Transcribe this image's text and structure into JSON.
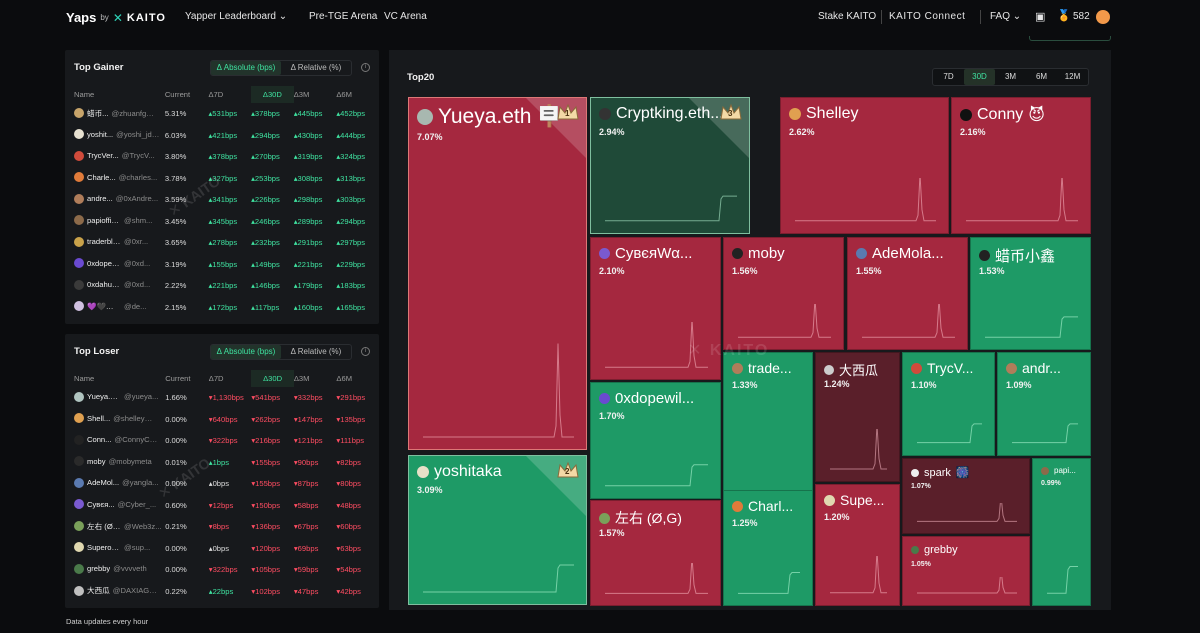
{
  "brand": {
    "name": "Yaps",
    "by": "by",
    "company": "KAITO"
  },
  "nav": {
    "leaderboard": "Yapper Leaderboard",
    "pretge": "Pre-TGE Arena",
    "vc": "VC Arena",
    "stake": "Stake KAITO",
    "connect": "KAITO Connect",
    "faq": "FAQ",
    "points": "582"
  },
  "gainer": {
    "title": "Top Gainer",
    "toggle_abs": "Δ Absolute (bps)",
    "toggle_rel": "Δ Relative (%)",
    "headers": [
      "Name",
      "Current",
      "Δ7D",
      "Δ30D",
      "Δ3M",
      "Δ6M"
    ],
    "rows": [
      {
        "name": "蜡币...",
        "handle": "@zhuanfgg...",
        "cur": "5.31%",
        "d7": "531bps",
        "d30": "378bps",
        "d3m": "445bps",
        "d6m": "452bps",
        "c": "#c7a46a"
      },
      {
        "name": "yoshit...",
        "handle": "@yoshi_jdc...",
        "cur": "6.03%",
        "d7": "421bps",
        "d30": "294bps",
        "d3m": "430bps",
        "d6m": "444bps",
        "c": "#e6e0d0"
      },
      {
        "name": "TrycVer...",
        "handle": "@TrycV...",
        "cur": "3.80%",
        "d7": "378bps",
        "d30": "270bps",
        "d3m": "319bps",
        "d6m": "324bps",
        "c": "#d04b3b"
      },
      {
        "name": "Charle...",
        "handle": "@charles...",
        "cur": "3.78%",
        "d7": "327bps",
        "d30": "253bps",
        "d3m": "308bps",
        "d6m": "313bps",
        "c": "#e07b3a"
      },
      {
        "name": "andre...",
        "handle": "@0xAndre...",
        "cur": "3.59%",
        "d7": "341bps",
        "d30": "226bps",
        "d3m": "298bps",
        "d6m": "303bps",
        "c": "#b07d5a"
      },
      {
        "name": "papiofficl...",
        "handle": "@shm...",
        "cur": "3.45%",
        "d7": "345bps",
        "d30": "246bps",
        "d3m": "289bps",
        "d6m": "294bps",
        "c": "#8c6a4a"
      },
      {
        "name": "traderblue...",
        "handle": "@0xr...",
        "cur": "3.65%",
        "d7": "278bps",
        "d30": "232bps",
        "d3m": "291bps",
        "d6m": "297bps",
        "c": "#c9a24a"
      },
      {
        "name": "0xdopewil...",
        "handle": "@0xd...",
        "cur": "3.19%",
        "d7": "155bps",
        "d30": "149bps",
        "d3m": "221bps",
        "d6m": "229bps",
        "c": "#6a4ad0"
      },
      {
        "name": "0xdahua...",
        "handle": "@0xd...",
        "cur": "2.22%",
        "d7": "221bps",
        "d30": "146bps",
        "d3m": "179bps",
        "d6m": "183bps",
        "c": "#3a3a3a"
      },
      {
        "name": "💜🖤💚 Kha...",
        "handle": "@de...",
        "cur": "2.15%",
        "d7": "172bps",
        "d30": "117bps",
        "d3m": "160bps",
        "d6m": "165bps",
        "c": "#d0c0e0"
      }
    ]
  },
  "loser": {
    "title": "Top Loser",
    "toggle_abs": "Δ Absolute (bps)",
    "toggle_rel": "Δ Relative (%)",
    "headers": [
      "Name",
      "Current",
      "Δ7D",
      "Δ30D",
      "Δ3M",
      "Δ6M"
    ],
    "rows": [
      {
        "name": "Yueya.et...",
        "handle": "@yueya...",
        "cur": "1.66%",
        "d7": "1,130bps",
        "d30": "541bps",
        "d3m": "332bps",
        "d6m": "291bps",
        "c": "#b0c4c0",
        "d7dir": "dn"
      },
      {
        "name": "Shell...",
        "handle": "@shelleyma...",
        "cur": "0.00%",
        "d7": "640bps",
        "d30": "262bps",
        "d3m": "147bps",
        "d6m": "135bps",
        "c": "#e0a050",
        "d7dir": "dn"
      },
      {
        "name": "Conn...",
        "handle": "@ConnyCo...",
        "cur": "0.00%",
        "d7": "322bps",
        "d30": "216bps",
        "d3m": "121bps",
        "d6m": "111bps",
        "c": "#222",
        "d7dir": "dn"
      },
      {
        "name": "moby",
        "handle": "@mobymeta",
        "cur": "0.01%",
        "d7": "1bps",
        "d30": "155bps",
        "d3m": "90bps",
        "d6m": "82bps",
        "c": "#2a2a2a",
        "d7dir": "up"
      },
      {
        "name": "AdeMol...",
        "handle": "@yangla...",
        "cur": "0.00%",
        "d7": "0bps",
        "d30": "155bps",
        "d3m": "87bps",
        "d6m": "80bps",
        "c": "#5a7ab0",
        "d7dir": "flat"
      },
      {
        "name": "Cyвєя...",
        "handle": "@Cyber_...",
        "cur": "0.60%",
        "d7": "12bps",
        "d30": "150bps",
        "d3m": "58bps",
        "d6m": "48bps",
        "c": "#7a5ad0",
        "d7dir": "dn"
      },
      {
        "name": "左右 (Ø,...",
        "handle": "@Web3z...",
        "cur": "0.21%",
        "d7": "8bps",
        "d30": "136bps",
        "d3m": "67bps",
        "d6m": "60bps",
        "c": "#7aa05a",
        "d7dir": "dn"
      },
      {
        "name": "Superoger...",
        "handle": "@sup...",
        "cur": "0.00%",
        "d7": "0bps",
        "d30": "120bps",
        "d3m": "69bps",
        "d6m": "63bps",
        "c": "#e0d8b0",
        "d7dir": "flat"
      },
      {
        "name": "grebby",
        "handle": "@vvvveth",
        "cur": "0.00%",
        "d7": "322bps",
        "d30": "105bps",
        "d3m": "59bps",
        "d6m": "54bps",
        "c": "#4a7a4a",
        "d7dir": "dn"
      },
      {
        "name": "大西瓜",
        "handle": "@DAXIAGUA1",
        "cur": "0.22%",
        "d7": "22bps",
        "d30": "102bps",
        "d3m": "47bps",
        "d6m": "42bps",
        "c": "#c0c0c0",
        "d7dir": "up"
      }
    ]
  },
  "footer": "Data updates every hour",
  "treemap": {
    "title": "Top20",
    "timeframes": [
      "7D",
      "30D",
      "3M",
      "6M",
      "12M"
    ],
    "active_timeframe": "30D",
    "watermark": "KAITO",
    "cells": [
      {
        "name": "Yueya.eth",
        "pct": "7.07%",
        "rank": "1",
        "tone": "red",
        "emoji": "🪧"
      },
      {
        "name": "yoshitaka",
        "pct": "3.09%",
        "rank": "2",
        "tone": "green",
        "emoji": ""
      },
      {
        "name": "Cryptking.eth...",
        "pct": "2.94%",
        "rank": "3",
        "tone": "dgreen",
        "emoji": ""
      },
      {
        "name": "Shelley",
        "pct": "2.62%",
        "rank": "",
        "tone": "red",
        "emoji": ""
      },
      {
        "name": "Conny",
        "pct": "2.16%",
        "rank": "",
        "tone": "red",
        "emoji": "😈"
      },
      {
        "name": "CyвєяWα...",
        "pct": "2.10%",
        "rank": "",
        "tone": "red",
        "emoji": ""
      },
      {
        "name": "moby",
        "pct": "1.56%",
        "rank": "",
        "tone": "red",
        "emoji": ""
      },
      {
        "name": "AdeMola...",
        "pct": "1.55%",
        "rank": "",
        "tone": "red",
        "emoji": ""
      },
      {
        "name": "蜡币小鑫",
        "pct": "1.53%",
        "rank": "",
        "tone": "green",
        "emoji": ""
      },
      {
        "name": "0xdopewil...",
        "pct": "1.70%",
        "rank": "",
        "tone": "green",
        "emoji": ""
      },
      {
        "name": "trade...",
        "pct": "1.33%",
        "rank": "",
        "tone": "green",
        "emoji": ""
      },
      {
        "name": "大西瓜",
        "pct": "1.24%",
        "rank": "",
        "tone": "dark",
        "emoji": ""
      },
      {
        "name": "TrycV...",
        "pct": "1.10%",
        "rank": "",
        "tone": "green",
        "emoji": ""
      },
      {
        "name": "andr...",
        "pct": "1.09%",
        "rank": "",
        "tone": "green",
        "emoji": ""
      },
      {
        "name": "左右 (Ø,G)",
        "pct": "1.57%",
        "rank": "",
        "tone": "red",
        "emoji": ""
      },
      {
        "name": "Charl...",
        "pct": "1.25%",
        "rank": "",
        "tone": "green",
        "emoji": ""
      },
      {
        "name": "Supe...",
        "pct": "1.20%",
        "rank": "",
        "tone": "red",
        "emoji": ""
      },
      {
        "name": "spark",
        "pct": "1.07%",
        "rank": "",
        "tone": "dark",
        "emoji": "🎆"
      },
      {
        "name": "grebby",
        "pct": "1.05%",
        "rank": "",
        "tone": "red",
        "emoji": ""
      },
      {
        "name": "papi...",
        "pct": "0.99%",
        "rank": "",
        "tone": "green",
        "emoji": ""
      }
    ]
  },
  "colors": {
    "up": "#3fe2a0",
    "down": "#ff4d62",
    "red_cell": "#a5283f",
    "green_cell": "#1e9a66"
  }
}
